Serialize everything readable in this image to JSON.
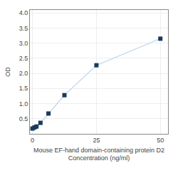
{
  "chart_data": {
    "type": "line",
    "xlabel": "Mouse EF-hand domain-containing protein D2\nConcentration (ng/ml)",
    "ylabel": "OD",
    "x": [
      0,
      0.78,
      1.563,
      3.125,
      6.25,
      12.5,
      25,
      50
    ],
    "series": [
      {
        "type": "line",
        "color": "#b8d4ea",
        "values": [
          0.176,
          0.212,
          0.243,
          0.364,
          0.673,
          1.28,
          2.27,
          3.15
        ]
      },
      {
        "type": "scatter",
        "marker": "square",
        "color": "#1a3a5c",
        "values": [
          0.176,
          0.212,
          0.243,
          0.364,
          0.673,
          1.28,
          2.27,
          3.15
        ]
      }
    ],
    "xlim": [
      -1,
      53
    ],
    "ylim": [
      0,
      4.1
    ],
    "xticks": [
      0,
      25,
      50
    ],
    "yticks": [
      0.5,
      {
        "value": 1.0,
        "label": "1.0"
      },
      1.5,
      {
        "value": 2.0,
        "label": "2.0"
      },
      2.5,
      {
        "value": 3.0,
        "label": "3.0"
      },
      3.5,
      {
        "value": 4.0,
        "label": "4.0"
      }
    ],
    "grid": true
  }
}
